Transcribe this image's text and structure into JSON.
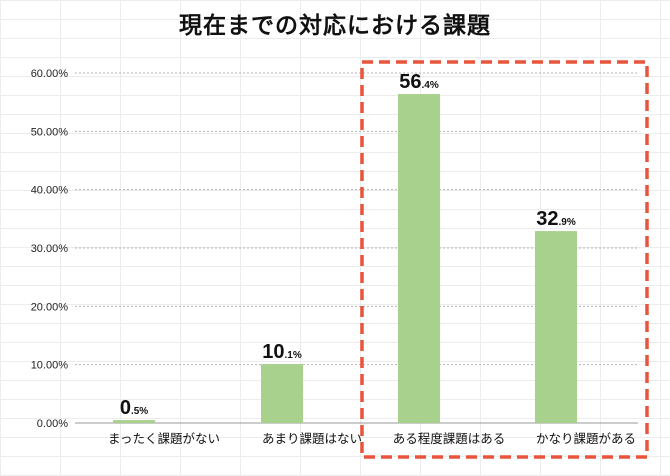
{
  "chart_data": {
    "type": "bar",
    "title": "現在までの対応における課題",
    "categories": [
      "まったく課題がない",
      "あまり課題はない",
      "ある程度課題はある",
      "かなり課題がある"
    ],
    "values": [
      0.5,
      10.1,
      56.4,
      32.9
    ],
    "value_labels": [
      {
        "main": "0",
        "small": ".5%"
      },
      {
        "main": "10",
        "small": ".1%"
      },
      {
        "main": "56",
        "small": ".4%"
      },
      {
        "main": "32",
        "small": ".9%"
      }
    ],
    "y_tick_labels": [
      "0.00%",
      "10.00%",
      "20.00%",
      "30.00%",
      "40.00%",
      "50.00%",
      "60.00%"
    ],
    "ylim": [
      0,
      60
    ],
    "bar_color": "#a9d18e",
    "grid": true,
    "highlight": {
      "categories": [
        "ある程度課題はある",
        "かなり課題がある"
      ],
      "color": "#e8553a",
      "style": "dashed"
    }
  }
}
